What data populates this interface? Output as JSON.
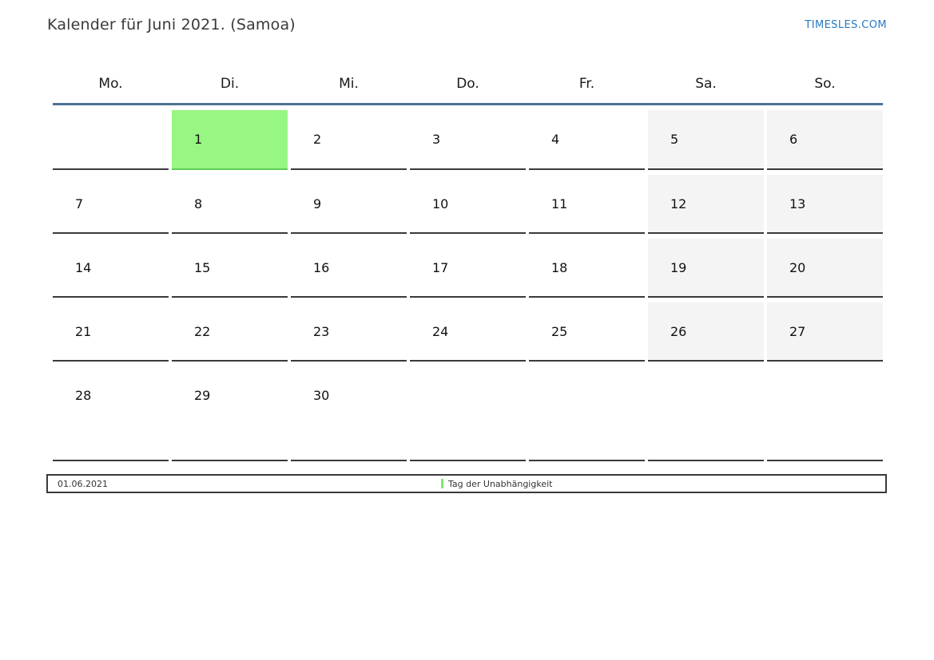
{
  "page": {
    "title": "Kalender für Juni 2021. (Samoa)",
    "site_link": "TIMESLES.COM"
  },
  "calendar": {
    "weekday_headers": [
      "Mo.",
      "Di.",
      "Mi.",
      "Do.",
      "Fr.",
      "Sa.",
      "So."
    ],
    "weeks": [
      [
        "",
        "1",
        "2",
        "3",
        "4",
        "5",
        "6"
      ],
      [
        "7",
        "8",
        "9",
        "10",
        "11",
        "12",
        "13"
      ],
      [
        "14",
        "15",
        "16",
        "17",
        "18",
        "19",
        "20"
      ],
      [
        "21",
        "22",
        "23",
        "24",
        "25",
        "26",
        "27"
      ],
      [
        "28",
        "29",
        "30",
        "",
        "",
        "",
        ""
      ]
    ],
    "highlighted_day": "1",
    "weekend_days": [
      5,
      6,
      12,
      13,
      19,
      20,
      26,
      27
    ]
  },
  "legend": {
    "date": "01.06.2021",
    "holiday": "Tag der Unabhängigkeit"
  },
  "colors": {
    "highlight_green": "#97f782",
    "highlight_green_border": "#5ecd54",
    "weekend_gray": "#f4f4f4",
    "header_line_blue": "#4e7295",
    "cell_border": "#3a3a3a",
    "link_blue": "#2779c4",
    "legend_marker_green": "#7deb6d"
  }
}
